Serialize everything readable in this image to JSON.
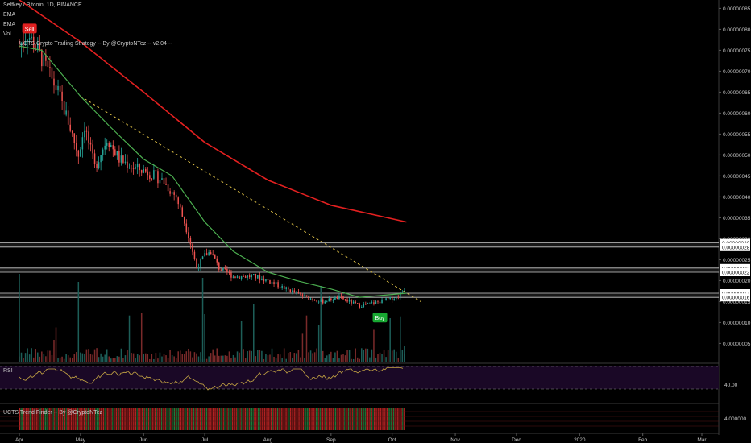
{
  "header": {
    "title": "Selfkey / Bitcoin, 1D, BINANCE",
    "ind1": "EMA",
    "ind2": "EMA",
    "ind3": "Vol",
    "strategy": "UCTS Crypto Trading Strategy -- By @CryptoNTez -- v2.04 --"
  },
  "colors": {
    "up": "#26a69a",
    "down": "#ef5350",
    "ema_slow": "#e32020",
    "ema_fast": "#4caf50",
    "trend": "#e8c94a",
    "rsi_fill": "#1a0826",
    "rsi_line": "#c8a844",
    "buy_badge": "#18a832",
    "sell_badge": "#e02020"
  },
  "chart_data": {
    "type": "candlestick",
    "symbol": "Selfkey / Bitcoin",
    "interval": "1D",
    "exchange": "BINANCE",
    "y_ticks": [
      "0.00000085",
      "0.00000080",
      "0.00000075",
      "0.00000070",
      "0.00000065",
      "0.00000060",
      "0.00000055",
      "0.00000050",
      "0.00000045",
      "0.00000040",
      "0.00000035",
      "0.00000030",
      "0.00000025",
      "0.00000020",
      "0.00000015",
      "0.00000010",
      "0.00000005"
    ],
    "ylim": [
      2e-08,
      8.7e-07
    ],
    "x_ticks": [
      "Apr",
      "May",
      "Jun",
      "Jul",
      "Aug",
      "Sep",
      "Oct",
      "Nov",
      "Dec",
      "2020",
      "Feb",
      "Mar"
    ],
    "x_tick_dates": [
      "2019-04-01",
      "2019-05-01",
      "2019-06-01",
      "2019-07-01",
      "2019-08-01",
      "2019-09-01",
      "2019-10-01",
      "2019-11-01",
      "2019-12-01",
      "2020-01-01",
      "2020-02-01",
      "2020-03-01"
    ],
    "price_path": [
      [
        "2019-04-01",
        7.6e-07
      ],
      [
        "2019-04-05",
        7.9e-07
      ],
      [
        "2019-04-10",
        7.5e-07
      ],
      [
        "2019-04-15",
        7e-07
      ],
      [
        "2019-04-20",
        6.5e-07
      ],
      [
        "2019-04-25",
        5.8e-07
      ],
      [
        "2019-04-30",
        5e-07
      ],
      [
        "2019-05-03",
        5.7e-07
      ],
      [
        "2019-05-08",
        4.7e-07
      ],
      [
        "2019-05-14",
        5.4e-07
      ],
      [
        "2019-05-20",
        4.9e-07
      ],
      [
        "2019-05-27",
        4.7e-07
      ],
      [
        "2019-06-03",
        4.6e-07
      ],
      [
        "2019-06-10",
        4.4e-07
      ],
      [
        "2019-06-17",
        4e-07
      ],
      [
        "2019-06-23",
        3.1e-07
      ],
      [
        "2019-06-27",
        2.3e-07
      ],
      [
        "2019-07-01",
        2.6e-07
      ],
      [
        "2019-07-04",
        2.7e-07
      ],
      [
        "2019-07-08",
        2.3e-07
      ],
      [
        "2019-07-15",
        2.1e-07
      ],
      [
        "2019-07-25",
        2.1e-07
      ],
      [
        "2019-08-01",
        2e-07
      ],
      [
        "2019-08-10",
        1.8e-07
      ],
      [
        "2019-08-20",
        1.6e-07
      ],
      [
        "2019-08-28",
        1.5e-07
      ],
      [
        "2019-09-05",
        1.6e-07
      ],
      [
        "2019-09-15",
        1.4e-07
      ],
      [
        "2019-09-25",
        1.5e-07
      ],
      [
        "2019-10-03",
        1.6e-07
      ],
      [
        "2019-10-07",
        1.8e-07
      ]
    ],
    "ema_slow": [
      [
        "2019-04-01",
        8.7e-07
      ],
      [
        "2019-05-01",
        7.7e-07
      ],
      [
        "2019-06-01",
        6.5e-07
      ],
      [
        "2019-07-01",
        5.3e-07
      ],
      [
        "2019-08-01",
        4.4e-07
      ],
      [
        "2019-09-01",
        3.8e-07
      ],
      [
        "2019-10-08",
        3.4e-07
      ]
    ],
    "ema_fast": [
      [
        "2019-04-01",
        7.6e-07
      ],
      [
        "2019-04-12",
        7.5e-07
      ],
      [
        "2019-05-01",
        6.4e-07
      ],
      [
        "2019-05-15",
        5.7e-07
      ],
      [
        "2019-06-01",
        4.9e-07
      ],
      [
        "2019-06-15",
        4.5e-07
      ],
      [
        "2019-07-01",
        3.4e-07
      ],
      [
        "2019-07-15",
        2.7e-07
      ],
      [
        "2019-08-01",
        2.2e-07
      ],
      [
        "2019-08-15",
        2e-07
      ],
      [
        "2019-09-01",
        1.8e-07
      ],
      [
        "2019-09-15",
        1.6e-07
      ],
      [
        "2019-10-08",
        1.7e-07
      ]
    ],
    "trendline": [
      [
        "2019-05-01",
        6.4e-07
      ],
      [
        "2019-10-15",
        1.5e-07
      ]
    ],
    "price_labels": [
      {
        "text": "0.00000029",
        "value": 2.9e-07
      },
      {
        "text": "0.00000028",
        "value": 2.8e-07
      },
      {
        "text": "0.00000023",
        "value": 2.3e-07
      },
      {
        "text": "0.00000022",
        "value": 2.2e-07
      },
      {
        "text": "0.00000017",
        "value": 1.7e-07
      },
      {
        "text": "0.00000016",
        "value": 1.6e-07
      }
    ],
    "sell_label": {
      "text": "Sell",
      "date": "2019-04-06",
      "value": 8e-07
    },
    "buy_label": {
      "text": "Buy",
      "date": "2019-09-25",
      "value": 1.1e-07
    },
    "rsi": {
      "label": "RSI",
      "level_text": "40.00"
    },
    "ucts": {
      "label": "UCTS Trend Finder -- By @CryptoNTez",
      "level_text": "4.000000"
    }
  }
}
